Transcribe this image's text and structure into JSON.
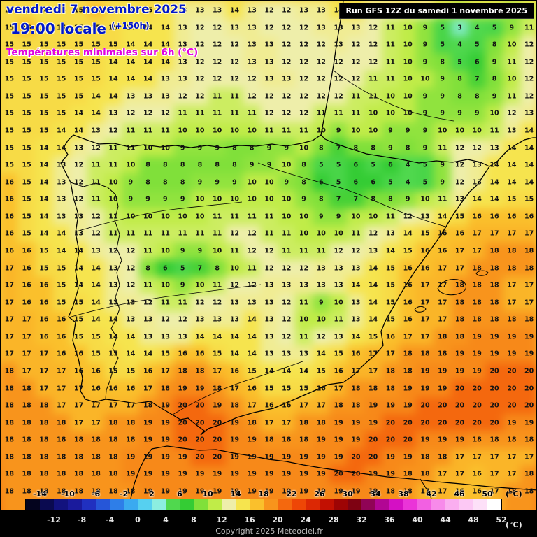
{
  "header": {
    "date_line": "vendredi 7 novembre 2025",
    "time_line": "19:00 locale",
    "offset_label": "(+150h)",
    "subtitle": "Températures minimales sur 6h (°C)",
    "run_info": "Run GFS 12Z du samedi 1 novembre 2025"
  },
  "footer": {
    "copyright": "Copyright 2025 Meteociel.fr",
    "unit_label": "(°C)"
  },
  "colors": {
    "title_blue": "#0018cc",
    "subtitle_magenta": "#e000e0",
    "run_box_bg": "#000000",
    "run_box_text": "#ffffff"
  },
  "scale": {
    "min": -16,
    "max": 52,
    "step": 2,
    "top_labels": [
      -14,
      -10,
      -6,
      -2,
      2,
      6,
      10,
      14,
      18,
      22,
      26,
      30,
      34,
      38,
      42,
      46,
      50
    ],
    "bottom_labels": [
      -12,
      -8,
      -4,
      0,
      4,
      8,
      12,
      16,
      20,
      24,
      28,
      32,
      36,
      40,
      44,
      48,
      52
    ],
    "colors": [
      "#04041e",
      "#0a0a50",
      "#12127e",
      "#1a1a9c",
      "#2030c0",
      "#2656d8",
      "#2e7ee8",
      "#3aaaf0",
      "#56d0f0",
      "#8ceee0",
      "#50d84e",
      "#34cc34",
      "#80e03a",
      "#c0ec48",
      "#eeeeaa",
      "#f6e44e",
      "#fac02c",
      "#f8941c",
      "#f4680e",
      "#ee4606",
      "#dc2804",
      "#c21002",
      "#9e0404",
      "#7e0212",
      "#900456",
      "#b20694",
      "#d410c4",
      "#ea34d8",
      "#f260e2",
      "#f78aea",
      "#faaef0",
      "#fcc8f4",
      "#fde0f8",
      "#ffffff"
    ]
  },
  "chart_data": {
    "type": "heatmap",
    "title": "Températures minimales sur 6h (°C)",
    "unit": "°C",
    "legend_position": "bottom",
    "cols": 31,
    "rows": 29,
    "values": [
      [
        15,
        15,
        14,
        15,
        15,
        16,
        15,
        14,
        15,
        14,
        13,
        13,
        13,
        14,
        13,
        12,
        12,
        13,
        13,
        14,
        14,
        12,
        12,
        13,
        12,
        10,
        9,
        10,
        10,
        9,
        10
      ],
      [
        15,
        16,
        15,
        15,
        15,
        15,
        15,
        14,
        14,
        14,
        13,
        12,
        12,
        13,
        13,
        12,
        12,
        12,
        13,
        13,
        13,
        12,
        11,
        10,
        9,
        5,
        3,
        4,
        5,
        9,
        11
      ],
      [
        15,
        15,
        15,
        15,
        15,
        15,
        15,
        14,
        14,
        14,
        13,
        12,
        12,
        12,
        13,
        13,
        12,
        12,
        12,
        13,
        12,
        12,
        11,
        10,
        9,
        5,
        4,
        5,
        8,
        10,
        12
      ],
      [
        15,
        15,
        15,
        15,
        15,
        15,
        14,
        14,
        14,
        14,
        13,
        12,
        12,
        12,
        13,
        13,
        12,
        12,
        12,
        12,
        12,
        12,
        11,
        10,
        9,
        8,
        5,
        6,
        9,
        11,
        12
      ],
      [
        15,
        15,
        15,
        15,
        15,
        15,
        14,
        14,
        14,
        13,
        13,
        12,
        12,
        12,
        12,
        13,
        13,
        12,
        12,
        12,
        12,
        11,
        11,
        10,
        10,
        9,
        8,
        7,
        8,
        10,
        12
      ],
      [
        15,
        15,
        15,
        15,
        15,
        14,
        14,
        13,
        13,
        13,
        12,
        12,
        11,
        11,
        12,
        12,
        12,
        12,
        12,
        12,
        11,
        11,
        10,
        10,
        9,
        9,
        8,
        8,
        9,
        11,
        12
      ],
      [
        15,
        15,
        15,
        15,
        14,
        14,
        13,
        12,
        12,
        12,
        11,
        11,
        11,
        11,
        11,
        12,
        12,
        12,
        11,
        11,
        11,
        10,
        10,
        10,
        9,
        9,
        9,
        9,
        10,
        12,
        13
      ],
      [
        15,
        15,
        15,
        14,
        14,
        13,
        12,
        11,
        11,
        11,
        10,
        10,
        10,
        10,
        10,
        11,
        11,
        11,
        10,
        9,
        10,
        10,
        9,
        9,
        9,
        10,
        10,
        10,
        11,
        13,
        14
      ],
      [
        15,
        15,
        14,
        14,
        13,
        12,
        11,
        11,
        10,
        10,
        9,
        9,
        9,
        8,
        8,
        9,
        9,
        10,
        8,
        7,
        8,
        8,
        9,
        8,
        9,
        11,
        12,
        12,
        13,
        14,
        14
      ],
      [
        15,
        15,
        14,
        13,
        12,
        11,
        11,
        10,
        8,
        8,
        8,
        8,
        8,
        8,
        9,
        9,
        10,
        8,
        5,
        5,
        6,
        5,
        6,
        4,
        5,
        9,
        12,
        13,
        14,
        14,
        14
      ],
      [
        16,
        15,
        14,
        13,
        12,
        11,
        10,
        9,
        8,
        8,
        8,
        9,
        9,
        9,
        10,
        10,
        9,
        8,
        6,
        5,
        6,
        6,
        5,
        4,
        5,
        9,
        12,
        13,
        14,
        14,
        14
      ],
      [
        16,
        15,
        14,
        13,
        12,
        11,
        10,
        9,
        9,
        9,
        9,
        10,
        10,
        10,
        10,
        10,
        10,
        9,
        8,
        7,
        7,
        8,
        8,
        9,
        10,
        11,
        13,
        14,
        14,
        15,
        15
      ],
      [
        16,
        15,
        14,
        13,
        13,
        12,
        11,
        10,
        10,
        10,
        10,
        10,
        11,
        11,
        11,
        11,
        10,
        10,
        9,
        9,
        10,
        10,
        11,
        12,
        13,
        14,
        15,
        16,
        16,
        16,
        16
      ],
      [
        16,
        15,
        14,
        14,
        13,
        12,
        11,
        11,
        11,
        11,
        11,
        11,
        11,
        12,
        12,
        11,
        11,
        10,
        10,
        10,
        11,
        12,
        13,
        14,
        15,
        16,
        16,
        17,
        17,
        17,
        17
      ],
      [
        16,
        16,
        15,
        14,
        14,
        13,
        12,
        12,
        11,
        10,
        9,
        9,
        10,
        11,
        12,
        12,
        11,
        11,
        11,
        12,
        12,
        13,
        14,
        15,
        16,
        16,
        17,
        17,
        18,
        18,
        18
      ],
      [
        17,
        16,
        15,
        15,
        14,
        14,
        13,
        12,
        8,
        6,
        5,
        7,
        8,
        10,
        11,
        12,
        12,
        12,
        13,
        13,
        13,
        14,
        15,
        16,
        16,
        17,
        17,
        18,
        18,
        18,
        18
      ],
      [
        17,
        16,
        16,
        15,
        14,
        14,
        13,
        12,
        11,
        10,
        9,
        10,
        11,
        12,
        12,
        13,
        13,
        13,
        13,
        13,
        14,
        14,
        15,
        16,
        17,
        17,
        18,
        18,
        18,
        17,
        17
      ],
      [
        17,
        16,
        16,
        15,
        15,
        14,
        13,
        13,
        12,
        11,
        11,
        12,
        12,
        13,
        13,
        13,
        12,
        11,
        9,
        10,
        13,
        14,
        15,
        16,
        17,
        17,
        18,
        18,
        18,
        17,
        17
      ],
      [
        17,
        17,
        16,
        16,
        15,
        14,
        14,
        13,
        13,
        12,
        12,
        13,
        13,
        13,
        14,
        13,
        12,
        10,
        10,
        11,
        13,
        14,
        15,
        16,
        17,
        17,
        18,
        18,
        18,
        18,
        18
      ],
      [
        17,
        17,
        16,
        16,
        15,
        15,
        14,
        14,
        13,
        13,
        13,
        14,
        14,
        14,
        14,
        13,
        12,
        11,
        12,
        13,
        14,
        15,
        16,
        17,
        17,
        18,
        18,
        19,
        19,
        19,
        19
      ],
      [
        17,
        17,
        17,
        16,
        16,
        15,
        15,
        14,
        14,
        15,
        16,
        16,
        15,
        14,
        14,
        13,
        13,
        13,
        14,
        15,
        16,
        17,
        17,
        18,
        18,
        18,
        19,
        19,
        19,
        19,
        19
      ],
      [
        18,
        17,
        17,
        17,
        16,
        16,
        15,
        15,
        16,
        17,
        18,
        18,
        17,
        16,
        15,
        14,
        14,
        14,
        15,
        16,
        17,
        17,
        18,
        18,
        19,
        19,
        19,
        19,
        20,
        20,
        20
      ],
      [
        18,
        18,
        17,
        17,
        17,
        16,
        16,
        16,
        17,
        18,
        19,
        19,
        18,
        17,
        16,
        15,
        15,
        15,
        16,
        17,
        18,
        18,
        18,
        19,
        19,
        19,
        20,
        20,
        20,
        20,
        20
      ],
      [
        18,
        18,
        18,
        17,
        17,
        17,
        17,
        17,
        18,
        19,
        20,
        20,
        19,
        18,
        17,
        16,
        16,
        17,
        17,
        18,
        18,
        19,
        19,
        19,
        20,
        20,
        20,
        20,
        20,
        20,
        20
      ],
      [
        18,
        18,
        18,
        18,
        17,
        17,
        18,
        18,
        19,
        19,
        20,
        20,
        20,
        19,
        18,
        17,
        17,
        18,
        18,
        19,
        19,
        19,
        20,
        20,
        20,
        20,
        20,
        20,
        20,
        19,
        19
      ],
      [
        18,
        18,
        18,
        18,
        18,
        18,
        18,
        18,
        19,
        19,
        20,
        20,
        20,
        19,
        19,
        18,
        18,
        18,
        19,
        19,
        19,
        20,
        20,
        20,
        19,
        19,
        19,
        18,
        18,
        18,
        18
      ],
      [
        18,
        18,
        18,
        18,
        18,
        18,
        18,
        19,
        19,
        19,
        19,
        20,
        20,
        19,
        19,
        19,
        19,
        19,
        19,
        19,
        20,
        20,
        19,
        19,
        18,
        18,
        17,
        17,
        17,
        17,
        17
      ],
      [
        18,
        18,
        18,
        18,
        18,
        18,
        18,
        19,
        19,
        19,
        19,
        19,
        19,
        19,
        19,
        19,
        19,
        19,
        19,
        20,
        20,
        19,
        19,
        18,
        18,
        17,
        17,
        16,
        17,
        17,
        18
      ],
      [
        18,
        18,
        18,
        18,
        18,
        18,
        18,
        18,
        19,
        19,
        19,
        19,
        19,
        19,
        19,
        19,
        19,
        19,
        19,
        19,
        19,
        19,
        18,
        18,
        17,
        17,
        16,
        16,
        17,
        18,
        18
      ]
    ]
  }
}
